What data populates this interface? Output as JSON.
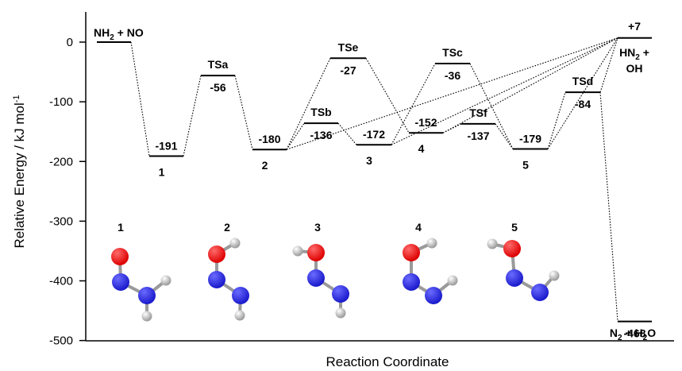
{
  "chart_data": {
    "type": "energy-profile",
    "title": "",
    "xlabel": "Reaction Coordinate",
    "ylabel": "Relative Energy / kJ mol",
    "ylabel_sup": "-1",
    "ylim": [
      -500,
      50
    ],
    "yticks": [
      0,
      -100,
      -200,
      -300,
      -400,
      -500
    ],
    "grid": false,
    "levels": [
      {
        "id": "nh2no",
        "name": "NH2 + NO",
        "energy": 0
      },
      {
        "id": "i1",
        "name": "1",
        "energy": -191
      },
      {
        "id": "tsa",
        "name": "TSa",
        "energy": -56
      },
      {
        "id": "i2",
        "name": "2",
        "energy": -180
      },
      {
        "id": "tsb",
        "name": "TSb",
        "energy": -136
      },
      {
        "id": "tse",
        "name": "TSe",
        "energy": -27
      },
      {
        "id": "i3",
        "name": "3",
        "energy": -172
      },
      {
        "id": "i4",
        "name": "4",
        "energy": -152
      },
      {
        "id": "tsc",
        "name": "TSc",
        "energy": -36
      },
      {
        "id": "tsf",
        "name": "TSf",
        "energy": -137
      },
      {
        "id": "i5",
        "name": "5",
        "energy": -179
      },
      {
        "id": "tsd",
        "name": "TSd",
        "energy": -84
      },
      {
        "id": "hn2oh",
        "name": "HN2 + OH",
        "energy": 7
      },
      {
        "id": "n2h2o",
        "name": "N2 + H2O",
        "energy": -468
      }
    ],
    "labels": {
      "nh2no": {
        "a": "NH",
        "sub": "2",
        "b": " + NO"
      },
      "hn2oh_energy": "+7",
      "hn2oh_l1a": "HN",
      "hn2oh_l1sub": "2",
      "hn2oh_l1b": " +",
      "hn2oh_l2": "OH",
      "n2h2o": {
        "a": "N",
        "sub1": "2",
        "b": " + H",
        "sub2": "2",
        "c": "O"
      },
      "energies": {
        "i1": "-191",
        "tsa": "-56",
        "i2": "-180",
        "tsb": "-136",
        "tse": "-27",
        "i3": "-172",
        "i4": "-152",
        "tsc": "-36",
        "tsf": "-137",
        "i5": "-179",
        "tsd": "-84",
        "n2h2o": "-468"
      }
    },
    "connections": [
      [
        "nh2no",
        "i1"
      ],
      [
        "i1",
        "tsa"
      ],
      [
        "tsa",
        "i2"
      ],
      [
        "i2",
        "tsb"
      ],
      [
        "tsb",
        "i3"
      ],
      [
        "i2",
        "tse"
      ],
      [
        "tse",
        "i4"
      ],
      [
        "i3",
        "tsc"
      ],
      [
        "tsc",
        "i5"
      ],
      [
        "i4",
        "tsf"
      ],
      [
        "tsf",
        "i5"
      ],
      [
        "i5",
        "tsd"
      ],
      [
        "tsd",
        "hn2oh"
      ],
      [
        "i2",
        "hn2oh"
      ],
      [
        "i3",
        "hn2oh"
      ],
      [
        "i4",
        "hn2oh"
      ],
      [
        "i5",
        "hn2oh"
      ],
      [
        "tsd",
        "n2h2o"
      ]
    ],
    "structure_labels": [
      "1",
      "2",
      "3",
      "4",
      "5"
    ]
  },
  "colors": {
    "oxygen": "#dd0000",
    "nitrogen": "#1a1acc",
    "hydrogen": "#d9d9d9",
    "bond": "#9a9a9a"
  }
}
